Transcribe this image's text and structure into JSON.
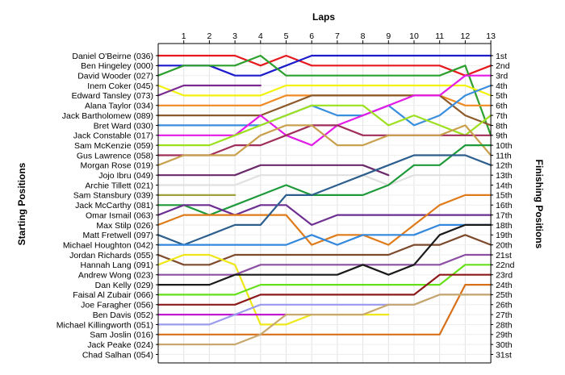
{
  "chart_data": {
    "type": "line",
    "title": "",
    "xlabel": "Laps",
    "ylabel_left": "Starting Positions",
    "ylabel_right": "Finishing Positions",
    "laps": [
      1,
      2,
      3,
      4,
      5,
      6,
      7,
      8,
      9,
      10,
      11,
      12,
      13
    ],
    "finishing_labels": [
      "1st",
      "2nd",
      "3rd",
      "4th",
      "5th",
      "6th",
      "7th",
      "8th",
      "9th",
      "10th",
      "11th",
      "12th",
      "13th",
      "14th",
      "15th",
      "16th",
      "17th",
      "18th",
      "19th",
      "20th",
      "21st",
      "22nd",
      "23rd",
      "24th",
      "25th",
      "26th",
      "27th",
      "28th",
      "29th",
      "30th",
      "31st"
    ],
    "grid": true,
    "series": [
      {
        "name": "Daniel O'Beirne (036)",
        "color": "#e6191f",
        "values": [
          1,
          1,
          1,
          1,
          2,
          1,
          2,
          2,
          2,
          2,
          2,
          2,
          3,
          2
        ]
      },
      {
        "name": "Ben Hingeley (000)",
        "color": "#1c1ccc",
        "values": [
          2,
          2,
          2,
          3,
          3,
          2,
          1,
          1,
          1,
          1,
          1,
          1,
          1,
          1
        ]
      },
      {
        "name": "David Wooder (027)",
        "color": "#2ea02e",
        "values": [
          3,
          2,
          2,
          2,
          1,
          3,
          3,
          3,
          3,
          3,
          3,
          3,
          2,
          9
        ]
      },
      {
        "name": "Inem Coker (045)",
        "color": "#f2f20d",
        "values": [
          4,
          5,
          5,
          5,
          5,
          4,
          4,
          4,
          4,
          4,
          4,
          4,
          4,
          5
        ]
      },
      {
        "name": "Edward Tansley (073)",
        "color": "#7a2a8e",
        "values": [
          5,
          4,
          4,
          4,
          4,
          null,
          null,
          null,
          null,
          null,
          null,
          null,
          null,
          null
        ]
      },
      {
        "name": "Alana Taylor (034)",
        "color": "#f08a24",
        "values": [
          6,
          6,
          6,
          6,
          6,
          5,
          5,
          5,
          5,
          5,
          5,
          5,
          6,
          6
        ]
      },
      {
        "name": "Jack Bartholomew (089)",
        "color": "#8c5a2b",
        "values": [
          7,
          7,
          7,
          7,
          7,
          6,
          5,
          5,
          5,
          5,
          5,
          5,
          7,
          8
        ]
      },
      {
        "name": "Bret Ward (030)",
        "color": "#3a8ede",
        "values": [
          8,
          8,
          8,
          8,
          8,
          7,
          6,
          7,
          7,
          6,
          8,
          7,
          5,
          4
        ]
      },
      {
        "name": "Jack Constable (017)",
        "color": "#e31ae8",
        "values": [
          9,
          9,
          9,
          9,
          7,
          9,
          10,
          8,
          7,
          6,
          5,
          5,
          3,
          3
        ]
      },
      {
        "name": "Sam McKenzie (059)",
        "color": "#9ce01f",
        "values": [
          10,
          10,
          10,
          9,
          8,
          7,
          6,
          6,
          6,
          8,
          7,
          8,
          9,
          7
        ]
      },
      {
        "name": "Gus Lawrence (058)",
        "color": "#a02e5a",
        "values": [
          11,
          11,
          11,
          10,
          10,
          9,
          8,
          8,
          9,
          9,
          9,
          9,
          9,
          9
        ]
      },
      {
        "name": "Morgan Rose (019)",
        "color": "#c9a14e",
        "values": [
          12,
          11,
          11,
          11,
          9,
          8,
          8,
          10,
          10,
          9,
          9,
          9,
          8,
          11
        ]
      },
      {
        "name": "Jojo Ibru (049)",
        "color": "#6b2a6b",
        "values": [
          13,
          13,
          13,
          13,
          12,
          12,
          12,
          12,
          12,
          13,
          null,
          null,
          null,
          null
        ]
      },
      {
        "name": "Archie Tillett (021)",
        "color": "#e0e0e0",
        "values": [
          14,
          14,
          14,
          14,
          13,
          13,
          13,
          13,
          13,
          14,
          13,
          13,
          13,
          13
        ]
      },
      {
        "name": "Sam Stansbury (039)",
        "color": "#a0a03c",
        "values": [
          15,
          15,
          15,
          15,
          null,
          null,
          null,
          null,
          null,
          null,
          null,
          null,
          null,
          null
        ]
      },
      {
        "name": "Jack McCarthy (081)",
        "color": "#1f9a3a",
        "values": [
          16,
          16,
          17,
          16,
          15,
          14,
          15,
          15,
          15,
          14,
          12,
          12,
          10,
          10
        ]
      },
      {
        "name": "Omar Ismail (063)",
        "color": "#6d2e91",
        "values": [
          17,
          16,
          16,
          17,
          16,
          16,
          18,
          17,
          17,
          17,
          17,
          17,
          17,
          17
        ]
      },
      {
        "name": "Max Stilp (026)",
        "color": "#e07b1a",
        "values": [
          18,
          17,
          17,
          17,
          17,
          17,
          20,
          19,
          19,
          20,
          18,
          16,
          15,
          15
        ]
      },
      {
        "name": "Matt Fretwell (097)",
        "color": "#2d5f8e",
        "values": [
          19,
          20,
          19,
          18,
          18,
          15,
          15,
          14,
          13,
          12,
          11,
          11,
          11,
          12
        ]
      },
      {
        "name": "Michael Houghton (042)",
        "color": "#3388dd",
        "values": [
          20,
          20,
          20,
          20,
          20,
          20,
          19,
          20,
          19,
          19,
          19,
          18,
          18,
          18
        ]
      },
      {
        "name": "Jordan Richards (055)",
        "color": "#7e4a2c",
        "values": [
          21,
          22,
          22,
          21,
          21,
          21,
          21,
          21,
          21,
          21,
          20,
          20,
          19,
          20
        ]
      },
      {
        "name": "Hannah Lang (091)",
        "color": "#eee81a",
        "values": [
          22,
          21,
          21,
          22,
          28,
          28,
          27,
          27,
          27,
          27,
          null,
          null,
          null,
          null
        ]
      },
      {
        "name": "Andrew Wong (023)",
        "color": "#8d4fa3",
        "values": [
          23,
          23,
          23,
          23,
          22,
          22,
          22,
          22,
          22,
          22,
          22,
          22,
          21,
          21
        ]
      },
      {
        "name": "Dan Kelly (029)",
        "color": "#1a1a1a",
        "values": [
          24,
          24,
          24,
          23,
          23,
          23,
          23,
          23,
          22,
          23,
          22,
          19,
          18,
          18
        ]
      },
      {
        "name": "Faisal Al Zubair (066)",
        "color": "#66e01a",
        "values": [
          25,
          25,
          25,
          25,
          24,
          24,
          24,
          24,
          24,
          24,
          24,
          24,
          22,
          22
        ]
      },
      {
        "name": "Joe Faragher (056)",
        "color": "#8d1a1a",
        "values": [
          26,
          26,
          26,
          26,
          25,
          25,
          25,
          25,
          25,
          25,
          25,
          23,
          23,
          23
        ]
      },
      {
        "name": "Ben Davis (052)",
        "color": "#c01ad0",
        "values": [
          27,
          27,
          27,
          27,
          27,
          27,
          null,
          null,
          null,
          null,
          null,
          null,
          null,
          null
        ]
      },
      {
        "name": "Michael Killingworth (051)",
        "color": "#9a9aee",
        "values": [
          28,
          28,
          28,
          27,
          26,
          26,
          26,
          26,
          26,
          26,
          26,
          25,
          25,
          25
        ]
      },
      {
        "name": "Sam Joslin (016)",
        "color": "#d8701a",
        "values": [
          29,
          29,
          29,
          29,
          29,
          29,
          29,
          29,
          29,
          29,
          29,
          29,
          24,
          24
        ]
      },
      {
        "name": "Jack Peake (024)",
        "color": "#c8a86e",
        "values": [
          30,
          30,
          30,
          30,
          29,
          27,
          27,
          27,
          27,
          26,
          26,
          25,
          25,
          25
        ]
      },
      {
        "name": "Chad Salhan (054)",
        "color": "#999999",
        "values": [
          31,
          null,
          null,
          null,
          null,
          null,
          null,
          null,
          null,
          null,
          null,
          null,
          null,
          null
        ]
      }
    ]
  }
}
